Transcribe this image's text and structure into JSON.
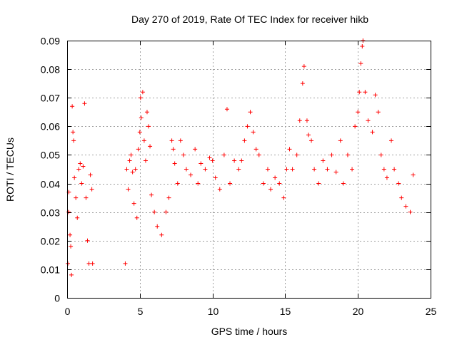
{
  "chart_data": {
    "type": "scatter",
    "title": "Day 270 of 2019, Rate Of TEC Index for receiver hikb",
    "xlabel": "GPS time / hours",
    "ylabel": "ROTI / TECUs",
    "xlim": [
      0,
      25
    ],
    "ylim": [
      0,
      0.09
    ],
    "x_ticks": [
      "0",
      "5",
      "10",
      "15",
      "20",
      "25"
    ],
    "y_ticks": [
      "0",
      "0.01",
      "0.02",
      "0.03",
      "0.04",
      "0.05",
      "0.06",
      "0.07",
      "0.08",
      "0.09"
    ],
    "grid": true,
    "marker": "+",
    "color": "#ff0000",
    "series": [
      {
        "points": [
          [
            0.05,
            0.012
          ],
          [
            0.1,
            0.03
          ],
          [
            0.12,
            0.037
          ],
          [
            0.2,
            0.022
          ],
          [
            0.25,
            0.018
          ],
          [
            0.3,
            0.008
          ],
          [
            0.35,
            0.067
          ],
          [
            0.4,
            0.058
          ],
          [
            0.45,
            0.055
          ],
          [
            0.5,
            0.042
          ],
          [
            0.6,
            0.035
          ],
          [
            0.7,
            0.028
          ],
          [
            0.8,
            0.045
          ],
          [
            0.9,
            0.047
          ],
          [
            1.0,
            0.04
          ],
          [
            1.1,
            0.046
          ],
          [
            1.2,
            0.068
          ],
          [
            1.3,
            0.035
          ],
          [
            1.4,
            0.02
          ],
          [
            1.5,
            0.012
          ],
          [
            1.6,
            0.043
          ],
          [
            1.7,
            0.038
          ],
          [
            1.75,
            0.012
          ],
          [
            4.0,
            0.012
          ],
          [
            4.1,
            0.045
          ],
          [
            4.2,
            0.038
          ],
          [
            4.3,
            0.048
          ],
          [
            4.4,
            0.05
          ],
          [
            4.5,
            0.044
          ],
          [
            4.6,
            0.033
          ],
          [
            4.7,
            0.045
          ],
          [
            4.8,
            0.028
          ],
          [
            4.9,
            0.052
          ],
          [
            5.0,
            0.058
          ],
          [
            5.05,
            0.07
          ],
          [
            5.1,
            0.063
          ],
          [
            5.2,
            0.072
          ],
          [
            5.3,
            0.055
          ],
          [
            5.4,
            0.048
          ],
          [
            5.5,
            0.065
          ],
          [
            5.6,
            0.06
          ],
          [
            5.7,
            0.053
          ],
          [
            5.8,
            0.036
          ],
          [
            6.0,
            0.03
          ],
          [
            6.2,
            0.025
          ],
          [
            6.5,
            0.022
          ],
          [
            6.8,
            0.03
          ],
          [
            7.0,
            0.035
          ],
          [
            7.2,
            0.055
          ],
          [
            7.3,
            0.052
          ],
          [
            7.4,
            0.047
          ],
          [
            7.6,
            0.04
          ],
          [
            7.8,
            0.055
          ],
          [
            8.0,
            0.05
          ],
          [
            8.2,
            0.045
          ],
          [
            8.5,
            0.043
          ],
          [
            8.8,
            0.052
          ],
          [
            9.0,
            0.04
          ],
          [
            9.2,
            0.047
          ],
          [
            9.5,
            0.045
          ],
          [
            9.8,
            0.049
          ],
          [
            10.0,
            0.048
          ],
          [
            10.2,
            0.042
          ],
          [
            10.5,
            0.038
          ],
          [
            10.8,
            0.05
          ],
          [
            11.0,
            0.066
          ],
          [
            11.2,
            0.04
          ],
          [
            11.5,
            0.048
          ],
          [
            11.8,
            0.045
          ],
          [
            12.0,
            0.048
          ],
          [
            12.2,
            0.055
          ],
          [
            12.4,
            0.06
          ],
          [
            12.6,
            0.065
          ],
          [
            12.8,
            0.058
          ],
          [
            13.0,
            0.052
          ],
          [
            13.2,
            0.05
          ],
          [
            13.5,
            0.04
          ],
          [
            13.8,
            0.045
          ],
          [
            14.0,
            0.038
          ],
          [
            14.3,
            0.042
          ],
          [
            14.6,
            0.04
          ],
          [
            14.9,
            0.035
          ],
          [
            15.1,
            0.045
          ],
          [
            15.3,
            0.052
          ],
          [
            15.5,
            0.045
          ],
          [
            15.8,
            0.05
          ],
          [
            16.0,
            0.062
          ],
          [
            16.2,
            0.075
          ],
          [
            16.3,
            0.081
          ],
          [
            16.5,
            0.062
          ],
          [
            16.6,
            0.057
          ],
          [
            16.8,
            0.055
          ],
          [
            17.0,
            0.045
          ],
          [
            17.3,
            0.04
          ],
          [
            17.6,
            0.048
          ],
          [
            17.9,
            0.045
          ],
          [
            18.2,
            0.05
          ],
          [
            18.5,
            0.044
          ],
          [
            18.8,
            0.055
          ],
          [
            19.0,
            0.04
          ],
          [
            19.3,
            0.05
          ],
          [
            19.6,
            0.045
          ],
          [
            19.8,
            0.06
          ],
          [
            20.0,
            0.065
          ],
          [
            20.1,
            0.072
          ],
          [
            20.2,
            0.082
          ],
          [
            20.3,
            0.088
          ],
          [
            20.35,
            0.09
          ],
          [
            20.5,
            0.072
          ],
          [
            20.7,
            0.062
          ],
          [
            21.0,
            0.058
          ],
          [
            21.2,
            0.071
          ],
          [
            21.4,
            0.065
          ],
          [
            21.6,
            0.05
          ],
          [
            21.8,
            0.045
          ],
          [
            22.0,
            0.042
          ],
          [
            22.3,
            0.055
          ],
          [
            22.5,
            0.045
          ],
          [
            22.8,
            0.04
          ],
          [
            23.0,
            0.035
          ],
          [
            23.3,
            0.032
          ],
          [
            23.6,
            0.03
          ],
          [
            23.8,
            0.043
          ]
        ]
      }
    ]
  }
}
